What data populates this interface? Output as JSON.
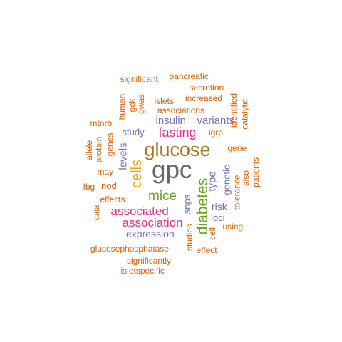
{
  "colors": {
    "orange": "#d95f02",
    "purple": "#7570b3",
    "magenta": "#e7298a",
    "green": "#66a61e",
    "gold": "#e6ab02",
    "brown": "#a6761d",
    "gray": "#666666"
  },
  "words": [
    {
      "text": "gpc",
      "weight": 1.0,
      "color": "gray",
      "vertical": false
    },
    {
      "text": "glucose",
      "weight": 0.8,
      "color": "brown",
      "vertical": false
    },
    {
      "text": "diabetes",
      "weight": 0.62,
      "color": "green",
      "vertical": true
    },
    {
      "text": "cells",
      "weight": 0.6,
      "color": "gold",
      "vertical": true
    },
    {
      "text": "mice",
      "weight": 0.56,
      "color": "green",
      "vertical": false
    },
    {
      "text": "fasting",
      "weight": 0.52,
      "color": "magenta",
      "vertical": false
    },
    {
      "text": "associated",
      "weight": 0.5,
      "color": "magenta",
      "vertical": false
    },
    {
      "text": "association",
      "weight": 0.5,
      "color": "magenta",
      "vertical": false
    },
    {
      "text": "insulin",
      "weight": 0.42,
      "color": "purple",
      "vertical": false
    },
    {
      "text": "variants",
      "weight": 0.42,
      "color": "purple",
      "vertical": false
    },
    {
      "text": "levels",
      "weight": 0.42,
      "color": "purple",
      "vertical": true
    },
    {
      "text": "type",
      "weight": 0.42,
      "color": "purple",
      "vertical": true
    },
    {
      "text": "risk",
      "weight": 0.38,
      "color": "purple",
      "vertical": false
    },
    {
      "text": "expression",
      "weight": 0.38,
      "color": "purple",
      "vertical": false
    },
    {
      "text": "study",
      "weight": 0.34,
      "color": "purple",
      "vertical": false
    },
    {
      "text": "genetic",
      "weight": 0.34,
      "color": "purple",
      "vertical": true
    },
    {
      "text": "snps",
      "weight": 0.34,
      "color": "purple",
      "vertical": true
    },
    {
      "text": "loci",
      "weight": 0.3,
      "color": "purple",
      "vertical": false
    },
    {
      "text": "igrp",
      "weight": 0.3,
      "color": "orange",
      "vertical": false
    },
    {
      "text": "gene",
      "weight": 0.3,
      "color": "orange",
      "vertical": false
    },
    {
      "text": "nod",
      "weight": 0.3,
      "color": "orange",
      "vertical": false
    },
    {
      "text": "genes",
      "weight": 0.28,
      "color": "orange",
      "vertical": true
    },
    {
      "text": "may",
      "weight": 0.28,
      "color": "orange",
      "vertical": false
    },
    {
      "text": "effects",
      "weight": 0.28,
      "color": "orange",
      "vertical": false
    },
    {
      "text": "tolerance",
      "weight": 0.28,
      "color": "orange",
      "vertical": true
    },
    {
      "text": "also",
      "weight": 0.28,
      "color": "orange",
      "vertical": true
    },
    {
      "text": "patients",
      "weight": 0.28,
      "color": "orange",
      "vertical": true
    },
    {
      "text": "using",
      "weight": 0.28,
      "color": "orange",
      "vertical": false
    },
    {
      "text": "effect",
      "weight": 0.28,
      "color": "orange",
      "vertical": false
    },
    {
      "text": "cell",
      "weight": 0.28,
      "color": "orange",
      "vertical": true
    },
    {
      "text": "studies",
      "weight": 0.28,
      "color": "orange",
      "vertical": true
    },
    {
      "text": "data",
      "weight": 0.28,
      "color": "orange",
      "vertical": true
    },
    {
      "text": "fbg",
      "weight": 0.28,
      "color": "orange",
      "vertical": false
    },
    {
      "text": "protein",
      "weight": 0.28,
      "color": "orange",
      "vertical": true
    },
    {
      "text": "allele",
      "weight": 0.28,
      "color": "orange",
      "vertical": true
    },
    {
      "text": "mtnrb",
      "weight": 0.28,
      "color": "orange",
      "vertical": false
    },
    {
      "text": "human",
      "weight": 0.28,
      "color": "orange",
      "vertical": true
    },
    {
      "text": "gck",
      "weight": 0.28,
      "color": "orange",
      "vertical": true
    },
    {
      "text": "gwas",
      "weight": 0.28,
      "color": "orange",
      "vertical": true
    },
    {
      "text": "islets",
      "weight": 0.28,
      "color": "orange",
      "vertical": false
    },
    {
      "text": "increased",
      "weight": 0.28,
      "color": "orange",
      "vertical": false
    },
    {
      "text": "associations",
      "weight": 0.28,
      "color": "orange",
      "vertical": false
    },
    {
      "text": "identified",
      "weight": 0.28,
      "color": "orange",
      "vertical": true
    },
    {
      "text": "catalytic",
      "weight": 0.28,
      "color": "orange",
      "vertical": true
    },
    {
      "text": "secretion",
      "weight": 0.28,
      "color": "orange",
      "vertical": false
    },
    {
      "text": "significant",
      "weight": 0.28,
      "color": "orange",
      "vertical": false
    },
    {
      "text": "pancreatic",
      "weight": 0.28,
      "color": "orange",
      "vertical": false
    },
    {
      "text": "glucosephosphatase",
      "weight": 0.28,
      "color": "orange",
      "vertical": false
    },
    {
      "text": "significantly",
      "weight": 0.28,
      "color": "orange",
      "vertical": false
    },
    {
      "text": "isletspecific",
      "weight": 0.28,
      "color": "orange",
      "vertical": false
    }
  ]
}
